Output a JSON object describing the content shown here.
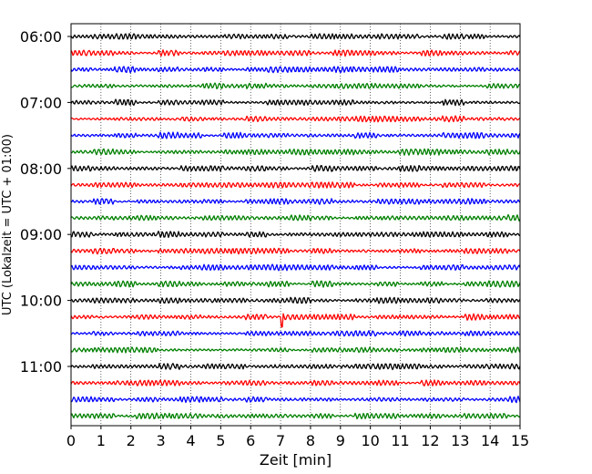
{
  "chart_data": {
    "type": "line",
    "title": "",
    "xlabel": "Zeit  [min]",
    "ylabel": "UTC (Lokalzeit = UTC + 01:00)",
    "xlim": [
      0,
      15
    ],
    "x_ticks": [
      "0",
      "1",
      "2",
      "3",
      "4",
      "5",
      "6",
      "7",
      "8",
      "9",
      "10",
      "11",
      "12",
      "13",
      "14",
      "15"
    ],
    "y_tick_labels": [
      "06:00",
      "07:00",
      "08:00",
      "09:00",
      "10:00",
      "11:00"
    ],
    "grid": "vertical dotted lines at each minute",
    "colors": [
      "#000000",
      "#ff0000",
      "#0000ff",
      "#008000"
    ],
    "traces": [
      {
        "start": "06:00",
        "color": "#000000"
      },
      {
        "start": "06:15",
        "color": "#ff0000"
      },
      {
        "start": "06:30",
        "color": "#0000ff"
      },
      {
        "start": "06:45",
        "color": "#008000"
      },
      {
        "start": "07:00",
        "color": "#000000"
      },
      {
        "start": "07:15",
        "color": "#ff0000"
      },
      {
        "start": "07:30",
        "color": "#0000ff"
      },
      {
        "start": "07:45",
        "color": "#008000"
      },
      {
        "start": "08:00",
        "color": "#000000"
      },
      {
        "start": "08:15",
        "color": "#ff0000"
      },
      {
        "start": "08:30",
        "color": "#0000ff"
      },
      {
        "start": "08:45",
        "color": "#008000"
      },
      {
        "start": "09:00",
        "color": "#000000"
      },
      {
        "start": "09:15",
        "color": "#ff0000"
      },
      {
        "start": "09:30",
        "color": "#0000ff"
      },
      {
        "start": "09:45",
        "color": "#008000"
      },
      {
        "start": "10:00",
        "color": "#000000"
      },
      {
        "start": "10:15",
        "color": "#ff0000",
        "event_minute": 7.05
      },
      {
        "start": "10:30",
        "color": "#0000ff"
      },
      {
        "start": "10:45",
        "color": "#008000"
      },
      {
        "start": "11:00",
        "color": "#000000"
      },
      {
        "start": "11:15",
        "color": "#ff0000"
      },
      {
        "start": "11:30",
        "color": "#0000ff"
      },
      {
        "start": "11:45",
        "color": "#008000"
      }
    ]
  }
}
